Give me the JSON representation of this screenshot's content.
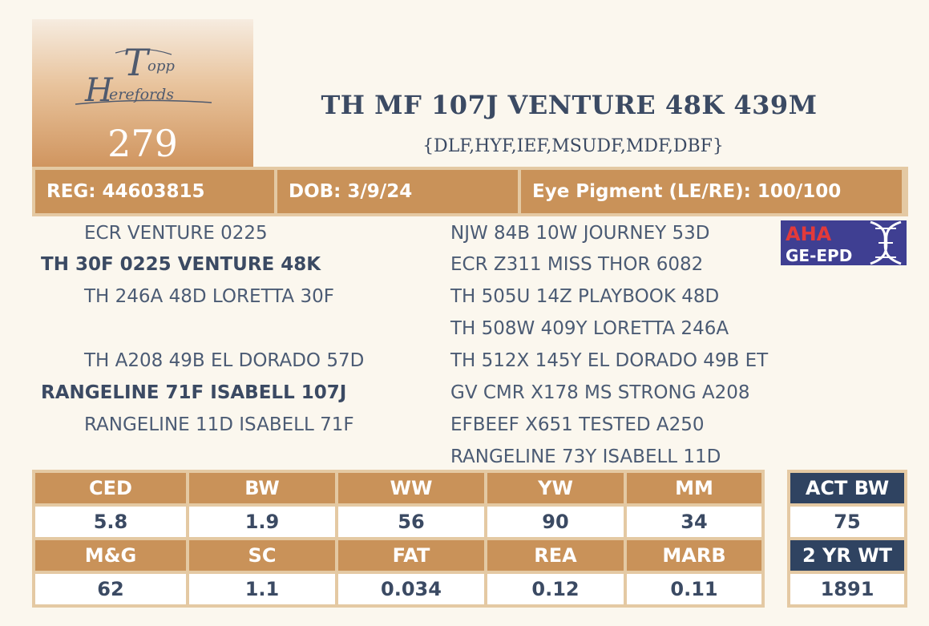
{
  "logo": {
    "text": "Topp Herefords"
  },
  "lot_number": "279",
  "animal_name": "TH MF 107J VENTURE 48K 439M",
  "genetic_status": "{DLF,HYF,IEF,MSUDF,MDF,DBF}",
  "info": {
    "reg": "REG: 44603815",
    "dob": "DOB: 3/9/24",
    "eye_pigment": "Eye Pigment (LE/RE): 100/100"
  },
  "badge": {
    "line1": "AHA",
    "line2": "GE-EPD"
  },
  "pedigree": {
    "sire": "TH 30F 0225 VENTURE 48K",
    "sire_sire": "ECR VENTURE 0225",
    "sire_dam": "TH 246A 48D LORETTA 30F",
    "dam": "RANGELINE 71F ISABELL 107J",
    "dam_sire": "TH A208 49B EL DORADO 57D",
    "dam_dam": "RANGELINE 11D ISABELL 71F",
    "ggp": [
      "NJW 84B 10W JOURNEY 53D",
      "ECR Z311 MISS THOR 6082",
      "TH 505U 14Z PLAYBOOK 48D",
      "TH 508W 409Y LORETTA 246A",
      "TH 512X 145Y EL DORADO 49B ET",
      "GV CMR X178 MS STRONG A208",
      "EFBEEF X651 TESTED A250",
      "RANGELINE 73Y ISABELL 11D"
    ]
  },
  "epd": {
    "row1": {
      "headers": [
        "CED",
        "BW",
        "WW",
        "YW",
        "MM"
      ],
      "values": [
        "5.8",
        "1.9",
        "56",
        "90",
        "34"
      ]
    },
    "row2": {
      "headers": [
        "M&G",
        "SC",
        "FAT",
        "REA",
        "MARB"
      ],
      "values": [
        "62",
        "1.1",
        "0.034",
        "0.12",
        "0.11"
      ]
    }
  },
  "actual": {
    "bw_label": "ACT BW",
    "bw_value": "75",
    "wt_label": "2 YR WT",
    "wt_value": "1891"
  },
  "colors": {
    "brand_copper": "#c99259",
    "frame_tan": "#e4c9a3",
    "navy_text": "#3b4a63",
    "navy_header": "#2f4361"
  }
}
